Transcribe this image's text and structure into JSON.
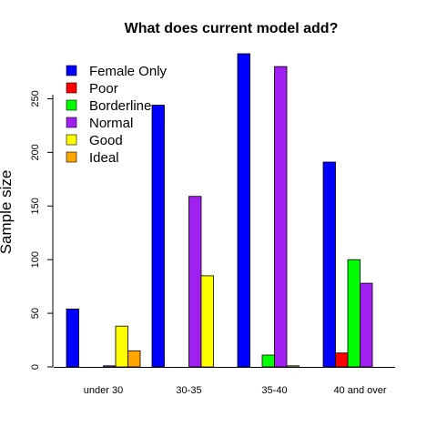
{
  "chart_data": {
    "type": "bar",
    "title": "What does current model add?",
    "xlabel": "",
    "ylabel": "Sample size",
    "categories": [
      "under 30",
      "30-35",
      "35-40",
      "40 and over"
    ],
    "series": [
      {
        "name": "Female Only",
        "color": "#0000ff",
        "values": [
          54,
          244,
          292,
          191
        ]
      },
      {
        "name": "Poor",
        "color": "#ff0000",
        "values": [
          0,
          0,
          0,
          13
        ]
      },
      {
        "name": "Borderline",
        "color": "#00ff00",
        "values": [
          0,
          0,
          11,
          100
        ]
      },
      {
        "name": "Normal",
        "color": "#a020f0",
        "values": [
          1,
          159,
          280,
          78
        ]
      },
      {
        "name": "Good",
        "color": "#ffff00",
        "values": [
          38,
          85,
          1,
          0
        ]
      },
      {
        "name": "Ideal",
        "color": "#ffa500",
        "values": [
          15,
          0,
          0,
          0
        ]
      }
    ],
    "yticks": [
      0,
      50,
      100,
      150,
      200,
      250
    ],
    "ylim": [
      0,
      292
    ],
    "legend_position": "top-left",
    "grid": false
  }
}
